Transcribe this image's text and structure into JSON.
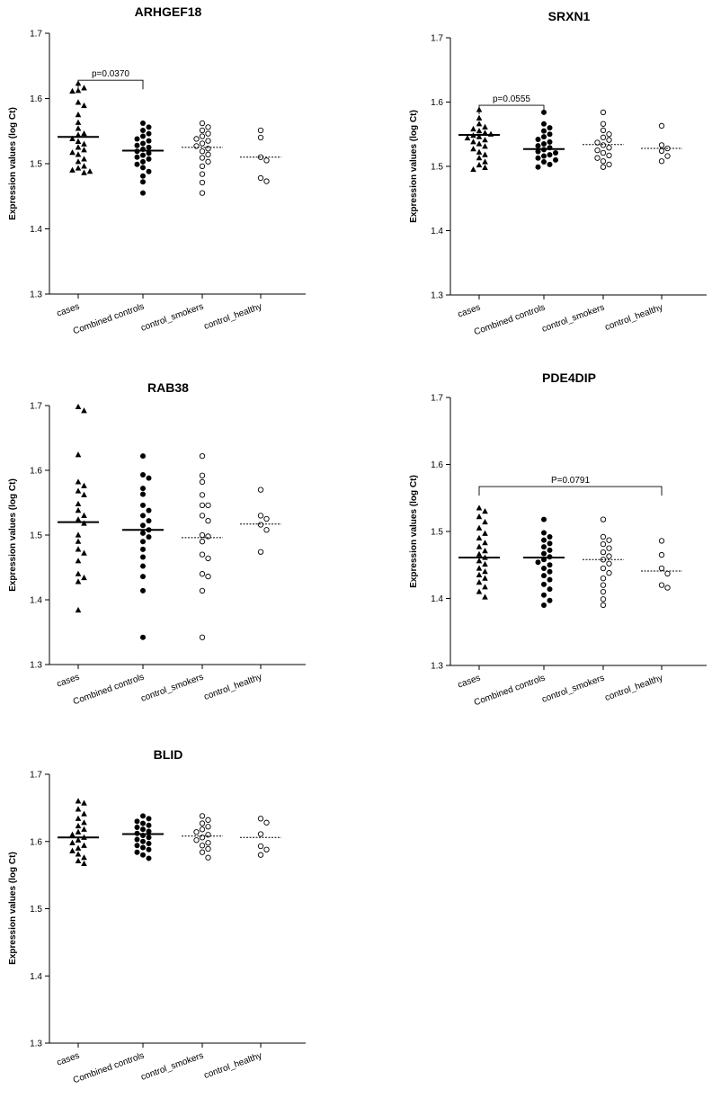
{
  "chart_data": [
    {
      "type": "scatter",
      "title": "ARHGEF18",
      "ylabel": "Expression values (log Ct)",
      "ylim": [
        1.3,
        1.7
      ],
      "yticks": [
        "1.3",
        "1.4",
        "1.5",
        "1.6",
        "1.7"
      ],
      "categories": [
        "cases",
        "Combined controls",
        "control_smokers",
        "control_healthy"
      ],
      "markers": [
        "triangle-filled",
        "circle-filled",
        "circle-open",
        "circle-open"
      ],
      "mean_line": [
        "solid",
        "solid",
        "dotted",
        "dotted"
      ],
      "means": [
        1.541,
        1.52,
        1.525,
        1.51
      ],
      "points": [
        [
          1.623,
          1.616,
          1.612,
          1.611,
          1.594,
          1.589,
          1.575,
          1.563,
          1.554,
          1.546,
          1.544,
          1.538,
          1.534,
          1.53,
          1.525,
          1.521,
          1.517,
          1.514,
          1.507,
          1.503,
          1.496,
          1.493,
          1.49,
          1.488,
          1.486
        ],
        [
          1.562,
          1.556,
          1.551,
          1.546,
          1.542,
          1.538,
          1.535,
          1.531,
          1.528,
          1.525,
          1.522,
          1.519,
          1.516,
          1.513,
          1.51,
          1.507,
          1.503,
          1.499,
          1.494,
          1.488,
          1.481,
          1.472,
          1.455
        ],
        [
          1.562,
          1.556,
          1.551,
          1.546,
          1.542,
          1.538,
          1.535,
          1.531,
          1.527,
          1.523,
          1.519,
          1.514,
          1.509,
          1.503,
          1.496,
          1.484,
          1.471,
          1.455
        ],
        [
          1.551,
          1.54,
          1.51,
          1.505,
          1.478,
          1.473
        ]
      ],
      "annotation": {
        "text": "p=0.0370",
        "from": 0,
        "to": 1,
        "y": 1.628
      }
    },
    {
      "type": "scatter",
      "title": "SRXN1",
      "ylabel": "Expression values (log Ct)",
      "ylim": [
        1.3,
        1.7
      ],
      "yticks": [
        "1.3",
        "1.4",
        "1.5",
        "1.6",
        "1.7"
      ],
      "categories": [
        "cases",
        "Combined controls",
        "control_smokers",
        "control_healthy"
      ],
      "markers": [
        "triangle-filled",
        "circle-filled",
        "circle-open",
        "circle-open"
      ],
      "mean_line": [
        "solid",
        "solid",
        "dotted",
        "dotted"
      ],
      "means": [
        1.549,
        1.527,
        1.534,
        1.528
      ],
      "points": [
        [
          1.588,
          1.575,
          1.566,
          1.561,
          1.558,
          1.555,
          1.552,
          1.55,
          1.548,
          1.546,
          1.544,
          1.541,
          1.538,
          1.535,
          1.531,
          1.527,
          1.522,
          1.518,
          1.513,
          1.507,
          1.502,
          1.498,
          1.495
        ],
        [
          1.584,
          1.566,
          1.56,
          1.555,
          1.55,
          1.546,
          1.542,
          1.538,
          1.535,
          1.532,
          1.529,
          1.526,
          1.523,
          1.521,
          1.518,
          1.516,
          1.513,
          1.51,
          1.507,
          1.503,
          1.499
        ],
        [
          1.584,
          1.566,
          1.556,
          1.55,
          1.545,
          1.541,
          1.537,
          1.533,
          1.529,
          1.525,
          1.521,
          1.517,
          1.513,
          1.508,
          1.503,
          1.499
        ],
        [
          1.563,
          1.533,
          1.528,
          1.524,
          1.516,
          1.508
        ]
      ],
      "annotation": {
        "text": "p=0.0555",
        "from": 0,
        "to": 1,
        "y": 1.595
      }
    },
    {
      "type": "scatter",
      "title": "RAB38",
      "ylabel": "Expression values (log Ct)",
      "ylim": [
        1.3,
        1.7
      ],
      "yticks": [
        "1.3",
        "1.4",
        "1.5",
        "1.6",
        "1.7"
      ],
      "categories": [
        "cases",
        "Combined controls",
        "control_smokers",
        "control_healthy"
      ],
      "markers": [
        "triangle-filled",
        "circle-filled",
        "circle-open",
        "circle-open"
      ],
      "mean_line": [
        "solid",
        "solid",
        "dotted",
        "dotted"
      ],
      "means": [
        1.52,
        1.508,
        1.496,
        1.517
      ],
      "points": [
        [
          1.698,
          1.692,
          1.624,
          1.582,
          1.576,
          1.568,
          1.562,
          1.548,
          1.538,
          1.53,
          1.524,
          1.518,
          1.5,
          1.49,
          1.478,
          1.472,
          1.46,
          1.44,
          1.434,
          1.428,
          1.384
        ],
        [
          1.622,
          1.593,
          1.588,
          1.572,
          1.563,
          1.546,
          1.538,
          1.53,
          1.522,
          1.515,
          1.508,
          1.503,
          1.497,
          1.49,
          1.478,
          1.466,
          1.452,
          1.436,
          1.414,
          1.342
        ],
        [
          1.622,
          1.592,
          1.582,
          1.562,
          1.546,
          1.546,
          1.53,
          1.522,
          1.5,
          1.498,
          1.49,
          1.47,
          1.464,
          1.44,
          1.436,
          1.414,
          1.342
        ],
        [
          1.57,
          1.53,
          1.525,
          1.516,
          1.508,
          1.474
        ]
      ]
    },
    {
      "type": "scatter",
      "title": "PDE4DIP",
      "ylabel": "Expression values (log Ct)",
      "ylim": [
        1.3,
        1.7
      ],
      "yticks": [
        "1.3",
        "1.4",
        "1.5",
        "1.6",
        "1.7"
      ],
      "categories": [
        "cases",
        "Combined controls",
        "control_smokers",
        "control_healthy"
      ],
      "markers": [
        "triangle-filled",
        "circle-filled",
        "circle-open",
        "circle-open"
      ],
      "mean_line": [
        "solid",
        "solid",
        "dotted",
        "dotted"
      ],
      "means": [
        1.461,
        1.461,
        1.458,
        1.441
      ],
      "points": [
        [
          1.535,
          1.53,
          1.522,
          1.514,
          1.505,
          1.497,
          1.49,
          1.483,
          1.477,
          1.471,
          1.466,
          1.461,
          1.456,
          1.451,
          1.445,
          1.44,
          1.435,
          1.43,
          1.424,
          1.417,
          1.41,
          1.402
        ],
        [
          1.518,
          1.498,
          1.492,
          1.487,
          1.482,
          1.477,
          1.472,
          1.467,
          1.462,
          1.458,
          1.454,
          1.45,
          1.445,
          1.44,
          1.434,
          1.428,
          1.421,
          1.414,
          1.405,
          1.397,
          1.39
        ],
        [
          1.518,
          1.492,
          1.487,
          1.481,
          1.475,
          1.469,
          1.463,
          1.458,
          1.452,
          1.445,
          1.438,
          1.43,
          1.42,
          1.41,
          1.399,
          1.39
        ],
        [
          1.486,
          1.465,
          1.445,
          1.437,
          1.42,
          1.416
        ]
      ],
      "annotation": {
        "text": "P=0.0791",
        "from": 0,
        "to": 3,
        "y": 1.567
      }
    },
    {
      "type": "scatter",
      "title": "BLID",
      "ylabel": "Expression values (log Ct)",
      "ylim": [
        1.3,
        1.7
      ],
      "yticks": [
        "1.3",
        "1.4",
        "1.5",
        "1.6",
        "1.7"
      ],
      "categories": [
        "cases",
        "Combined controls",
        "control_smokers",
        "control_healthy"
      ],
      "markers": [
        "triangle-filled",
        "circle-filled",
        "circle-open",
        "circle-open"
      ],
      "mean_line": [
        "solid",
        "solid",
        "dotted",
        "dotted"
      ],
      "means": [
        1.606,
        1.611,
        1.608,
        1.606
      ],
      "points": [
        [
          1.66,
          1.657,
          1.648,
          1.641,
          1.634,
          1.628,
          1.623,
          1.618,
          1.614,
          1.61,
          1.606,
          1.602,
          1.598,
          1.594,
          1.59,
          1.586,
          1.581,
          1.576,
          1.571,
          1.567
        ],
        [
          1.638,
          1.634,
          1.63,
          1.627,
          1.624,
          1.621,
          1.618,
          1.615,
          1.612,
          1.609,
          1.606,
          1.603,
          1.6,
          1.597,
          1.594,
          1.591,
          1.588,
          1.584,
          1.58,
          1.575
        ],
        [
          1.638,
          1.632,
          1.627,
          1.622,
          1.618,
          1.614,
          1.61,
          1.606,
          1.602,
          1.598,
          1.594,
          1.589,
          1.584,
          1.576
        ],
        [
          1.634,
          1.628,
          1.611,
          1.593,
          1.588,
          1.58
        ]
      ]
    }
  ]
}
